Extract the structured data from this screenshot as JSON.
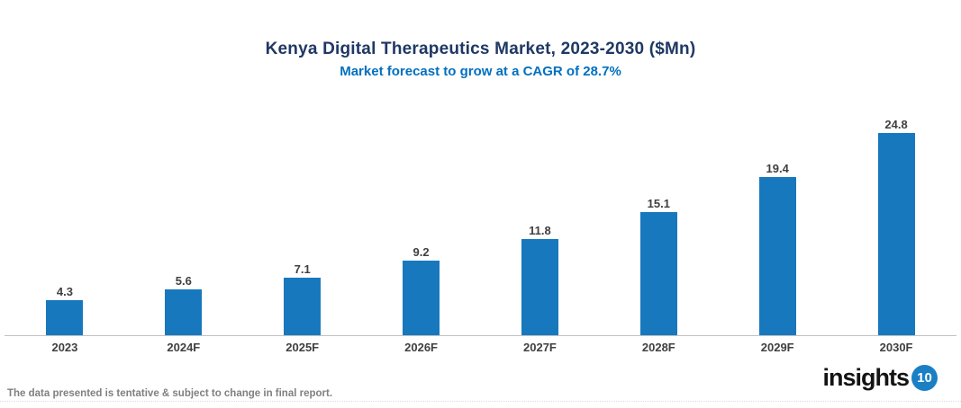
{
  "header": {
    "title": "Kenya Digital Therapeutics Market, 2023-2030 ($Mn)",
    "subtitle": "Market forecast to grow at a CAGR of 28.7%"
  },
  "chart_data": {
    "type": "bar",
    "categories": [
      "2023",
      "2024F",
      "2025F",
      "2026F",
      "2027F",
      "2028F",
      "2029F",
      "2030F"
    ],
    "values": [
      4.3,
      5.6,
      7.1,
      9.2,
      11.8,
      15.1,
      19.4,
      24.8
    ],
    "title": "Kenya Digital Therapeutics Market, 2023-2030 ($Mn)",
    "subtitle": "Market forecast to grow at a CAGR of 28.7%",
    "xlabel": "",
    "ylabel": "",
    "unit": "$Mn",
    "ylim": [
      0,
      28
    ],
    "grid": false,
    "legend": false,
    "data_labels": true,
    "cagr": "28.7%"
  },
  "footer": {
    "note": "The data presented is tentative & subject to change in final report.",
    "logo_text": "insights",
    "logo_badge": "10"
  },
  "colors": {
    "title": "#1F3864",
    "subtitle": "#0070C0",
    "bar": "#1878BE",
    "value_label": "#404040",
    "axis_line": "#C2C2C2",
    "footer_text": "#808080",
    "logo_badge_bg": "#1B7FC4"
  }
}
